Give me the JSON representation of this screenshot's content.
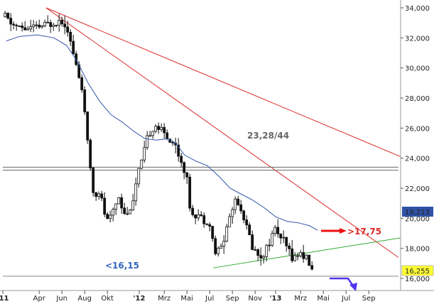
{
  "chart_data": {
    "type": "candlestick",
    "xlabels": [
      "'11",
      "Apr",
      "Jun",
      "Aug",
      "Okt",
      "'12",
      "Mrz",
      "Mai",
      "Jul",
      "Sep",
      "Nov",
      "'13",
      "Mrz",
      "Mai",
      "Jul",
      "Sep"
    ],
    "xlabel_months": [
      0,
      3.2,
      5.2,
      7.2,
      9.2,
      12,
      14.2,
      16.2,
      18.2,
      20.2,
      22.2,
      24,
      26.2,
      28.2,
      30.2,
      32.2
    ],
    "x_range_months": [
      0,
      35
    ],
    "y_ticks": [
      16000,
      18000,
      20000,
      22000,
      24000,
      26000,
      28000,
      30000,
      32000,
      34000
    ],
    "y_tick_labels": [
      "16,000",
      "18,000",
      "20,000",
      "22,000",
      "24,000",
      "26,000",
      "28,000",
      "30,000",
      "32,000",
      "34,000"
    ],
    "ylim": [
      15500,
      34500
    ],
    "grid": false,
    "price_path": [
      [
        0.2,
        33400
      ],
      [
        1.0,
        32800
      ],
      [
        2.0,
        32600
      ],
      [
        3.0,
        32700
      ],
      [
        4.0,
        32900
      ],
      [
        5.0,
        33200
      ],
      [
        5.6,
        33000
      ],
      [
        6.0,
        31500
      ],
      [
        6.5,
        30000
      ],
      [
        7.0,
        28500
      ],
      [
        7.3,
        26000
      ],
      [
        7.6,
        24000
      ],
      [
        8.0,
        21500
      ],
      [
        8.5,
        21800
      ],
      [
        9.0,
        20200
      ],
      [
        9.3,
        19700
      ],
      [
        9.8,
        20800
      ],
      [
        10.2,
        21500
      ],
      [
        10.6,
        20500
      ],
      [
        11.0,
        20200
      ],
      [
        11.5,
        21500
      ],
      [
        11.9,
        23000
      ],
      [
        12.3,
        24000
      ],
      [
        12.8,
        25500
      ],
      [
        13.4,
        26200
      ],
      [
        14.0,
        25800
      ],
      [
        14.6,
        25200
      ],
      [
        15.1,
        25000
      ],
      [
        15.6,
        24000
      ],
      [
        16.1,
        23000
      ],
      [
        16.5,
        20500
      ],
      [
        17.1,
        20300
      ],
      [
        17.6,
        20000
      ],
      [
        18.2,
        19500
      ],
      [
        18.7,
        17700
      ],
      [
        19.3,
        18200
      ],
      [
        19.9,
        20000
      ],
      [
        20.5,
        21400
      ],
      [
        21.0,
        20500
      ],
      [
        21.5,
        19300
      ],
      [
        22.0,
        18000
      ],
      [
        22.6,
        17500
      ],
      [
        23.1,
        17800
      ],
      [
        23.5,
        18600
      ],
      [
        24.0,
        19400
      ],
      [
        24.6,
        18500
      ],
      [
        25.1,
        17900
      ],
      [
        25.6,
        17400
      ],
      [
        26.2,
        17700
      ],
      [
        26.7,
        17400
      ],
      [
        27.0,
        16900
      ],
      [
        27.4,
        16200
      ]
    ],
    "moving_average": [
      [
        0.3,
        31800
      ],
      [
        1.5,
        32100
      ],
      [
        3.0,
        32200
      ],
      [
        4.5,
        32000
      ],
      [
        5.6,
        31500
      ],
      [
        6.5,
        30500
      ],
      [
        7.5,
        29000
      ],
      [
        8.5,
        27800
      ],
      [
        9.5,
        26900
      ],
      [
        10.5,
        26400
      ],
      [
        11.5,
        25800
      ],
      [
        12.5,
        25300
      ],
      [
        13.5,
        25200
      ],
      [
        14.5,
        25300
      ],
      [
        15.2,
        25000
      ],
      [
        16.0,
        24200
      ],
      [
        17.0,
        23800
      ],
      [
        18.0,
        23500
      ],
      [
        19.0,
        22800
      ],
      [
        20.0,
        22000
      ],
      [
        21.0,
        21600
      ],
      [
        22.0,
        21200
      ],
      [
        23.0,
        20700
      ],
      [
        24.0,
        20100
      ],
      [
        25.0,
        19800
      ],
      [
        26.0,
        19700
      ],
      [
        27.0,
        19500
      ],
      [
        27.7,
        19200
      ]
    ],
    "lines": [
      {
        "name": "downtrend-long",
        "color": "#dd2a2a",
        "from": [
          3.8,
          34000
        ],
        "to": [
          35,
          24100
        ]
      },
      {
        "name": "downtrend-steep",
        "color": "#dd2a2a",
        "from": [
          3.8,
          34000
        ],
        "to": [
          34.8,
          17400
        ]
      },
      {
        "name": "support-uptrend",
        "color": "#33aa33",
        "from": [
          18.5,
          16700
        ],
        "to": [
          35,
          18700
        ]
      },
      {
        "name": "horizontal-resistance-a",
        "color": "#666666",
        "from": [
          0,
          23400
        ],
        "to": [
          34.8,
          23400
        ]
      },
      {
        "name": "horizontal-resistance-b",
        "color": "#666666",
        "from": [
          0,
          23200
        ],
        "to": [
          34.8,
          23200
        ]
      },
      {
        "name": "horizontal-support",
        "color": "#888888",
        "from": [
          0,
          16150
        ],
        "to": [
          34.8,
          16150
        ]
      }
    ],
    "annotations": {
      "resistance_label": "23,28/44",
      "target_label": ">17,75",
      "support_label": "<16,15"
    },
    "price_badges": {
      "ma_value": "19,213",
      "last_close": "16,255"
    },
    "colors": {
      "candles": "#111111",
      "moving_average": "#3355aa",
      "resistance_label": "#666666",
      "target_label": "#dd2a2a",
      "support_label": "#3366bb",
      "ma_badge": "#2f52a6",
      "close_badge": "#ffff33",
      "arrow_red": "#ee1111",
      "arrow_violet": "#5533ee"
    }
  }
}
